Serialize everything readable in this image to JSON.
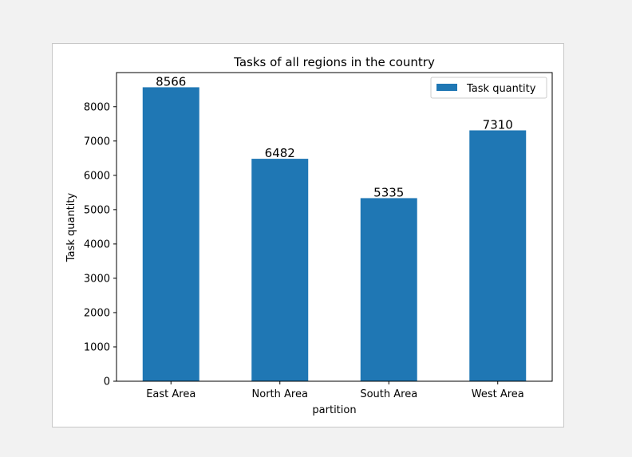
{
  "chart_data": {
    "type": "bar",
    "title": "Tasks of all regions in the country",
    "xlabel": "partition",
    "ylabel": "Task quantity",
    "categories": [
      "East Area",
      "North Area",
      "South Area",
      "West Area"
    ],
    "series": [
      {
        "name": "Task quantity",
        "values": [
          8566,
          6482,
          5335,
          7310
        ],
        "color": "#1f77b4"
      }
    ],
    "data_labels": [
      "8566",
      "6482",
      "5335",
      "7310"
    ],
    "ylim": [
      0,
      8994
    ],
    "yticks": [
      0,
      1000,
      2000,
      3000,
      4000,
      5000,
      6000,
      7000,
      8000
    ],
    "ytick_labels": [
      "0",
      "1000",
      "2000",
      "3000",
      "4000",
      "5000",
      "6000",
      "7000",
      "8000"
    ],
    "grid": false,
    "legend_position": "top-right"
  }
}
